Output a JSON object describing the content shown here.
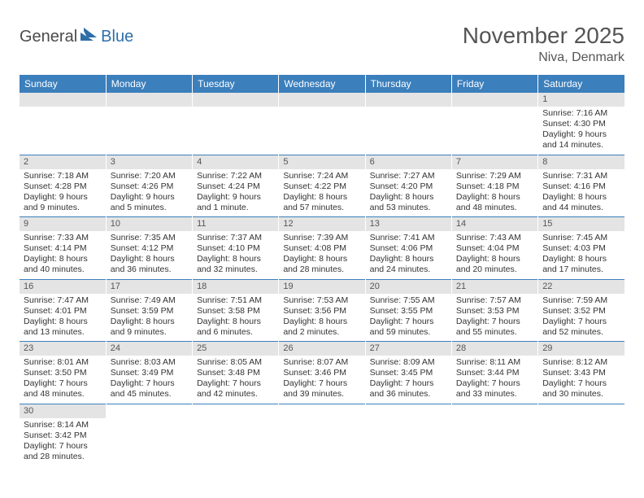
{
  "logo": {
    "general": "General",
    "blue": "Blue"
  },
  "title": "November 2025",
  "location": "Niva, Denmark",
  "weekdays": [
    "Sunday",
    "Monday",
    "Tuesday",
    "Wednesday",
    "Thursday",
    "Friday",
    "Saturday"
  ],
  "header_bg": "#3b7fbc",
  "daynum_bg": "#e4e4e4",
  "rule_color": "#3b7fbc",
  "weeks": [
    [
      null,
      null,
      null,
      null,
      null,
      null,
      {
        "n": "1",
        "sr": "Sunrise: 7:16 AM",
        "ss": "Sunset: 4:30 PM",
        "dl": "Daylight: 9 hours and 14 minutes."
      }
    ],
    [
      {
        "n": "2",
        "sr": "Sunrise: 7:18 AM",
        "ss": "Sunset: 4:28 PM",
        "dl": "Daylight: 9 hours and 9 minutes."
      },
      {
        "n": "3",
        "sr": "Sunrise: 7:20 AM",
        "ss": "Sunset: 4:26 PM",
        "dl": "Daylight: 9 hours and 5 minutes."
      },
      {
        "n": "4",
        "sr": "Sunrise: 7:22 AM",
        "ss": "Sunset: 4:24 PM",
        "dl": "Daylight: 9 hours and 1 minute."
      },
      {
        "n": "5",
        "sr": "Sunrise: 7:24 AM",
        "ss": "Sunset: 4:22 PM",
        "dl": "Daylight: 8 hours and 57 minutes."
      },
      {
        "n": "6",
        "sr": "Sunrise: 7:27 AM",
        "ss": "Sunset: 4:20 PM",
        "dl": "Daylight: 8 hours and 53 minutes."
      },
      {
        "n": "7",
        "sr": "Sunrise: 7:29 AM",
        "ss": "Sunset: 4:18 PM",
        "dl": "Daylight: 8 hours and 48 minutes."
      },
      {
        "n": "8",
        "sr": "Sunrise: 7:31 AM",
        "ss": "Sunset: 4:16 PM",
        "dl": "Daylight: 8 hours and 44 minutes."
      }
    ],
    [
      {
        "n": "9",
        "sr": "Sunrise: 7:33 AM",
        "ss": "Sunset: 4:14 PM",
        "dl": "Daylight: 8 hours and 40 minutes."
      },
      {
        "n": "10",
        "sr": "Sunrise: 7:35 AM",
        "ss": "Sunset: 4:12 PM",
        "dl": "Daylight: 8 hours and 36 minutes."
      },
      {
        "n": "11",
        "sr": "Sunrise: 7:37 AM",
        "ss": "Sunset: 4:10 PM",
        "dl": "Daylight: 8 hours and 32 minutes."
      },
      {
        "n": "12",
        "sr": "Sunrise: 7:39 AM",
        "ss": "Sunset: 4:08 PM",
        "dl": "Daylight: 8 hours and 28 minutes."
      },
      {
        "n": "13",
        "sr": "Sunrise: 7:41 AM",
        "ss": "Sunset: 4:06 PM",
        "dl": "Daylight: 8 hours and 24 minutes."
      },
      {
        "n": "14",
        "sr": "Sunrise: 7:43 AM",
        "ss": "Sunset: 4:04 PM",
        "dl": "Daylight: 8 hours and 20 minutes."
      },
      {
        "n": "15",
        "sr": "Sunrise: 7:45 AM",
        "ss": "Sunset: 4:03 PM",
        "dl": "Daylight: 8 hours and 17 minutes."
      }
    ],
    [
      {
        "n": "16",
        "sr": "Sunrise: 7:47 AM",
        "ss": "Sunset: 4:01 PM",
        "dl": "Daylight: 8 hours and 13 minutes."
      },
      {
        "n": "17",
        "sr": "Sunrise: 7:49 AM",
        "ss": "Sunset: 3:59 PM",
        "dl": "Daylight: 8 hours and 9 minutes."
      },
      {
        "n": "18",
        "sr": "Sunrise: 7:51 AM",
        "ss": "Sunset: 3:58 PM",
        "dl": "Daylight: 8 hours and 6 minutes."
      },
      {
        "n": "19",
        "sr": "Sunrise: 7:53 AM",
        "ss": "Sunset: 3:56 PM",
        "dl": "Daylight: 8 hours and 2 minutes."
      },
      {
        "n": "20",
        "sr": "Sunrise: 7:55 AM",
        "ss": "Sunset: 3:55 PM",
        "dl": "Daylight: 7 hours and 59 minutes."
      },
      {
        "n": "21",
        "sr": "Sunrise: 7:57 AM",
        "ss": "Sunset: 3:53 PM",
        "dl": "Daylight: 7 hours and 55 minutes."
      },
      {
        "n": "22",
        "sr": "Sunrise: 7:59 AM",
        "ss": "Sunset: 3:52 PM",
        "dl": "Daylight: 7 hours and 52 minutes."
      }
    ],
    [
      {
        "n": "23",
        "sr": "Sunrise: 8:01 AM",
        "ss": "Sunset: 3:50 PM",
        "dl": "Daylight: 7 hours and 48 minutes."
      },
      {
        "n": "24",
        "sr": "Sunrise: 8:03 AM",
        "ss": "Sunset: 3:49 PM",
        "dl": "Daylight: 7 hours and 45 minutes."
      },
      {
        "n": "25",
        "sr": "Sunrise: 8:05 AM",
        "ss": "Sunset: 3:48 PM",
        "dl": "Daylight: 7 hours and 42 minutes."
      },
      {
        "n": "26",
        "sr": "Sunrise: 8:07 AM",
        "ss": "Sunset: 3:46 PM",
        "dl": "Daylight: 7 hours and 39 minutes."
      },
      {
        "n": "27",
        "sr": "Sunrise: 8:09 AM",
        "ss": "Sunset: 3:45 PM",
        "dl": "Daylight: 7 hours and 36 minutes."
      },
      {
        "n": "28",
        "sr": "Sunrise: 8:11 AM",
        "ss": "Sunset: 3:44 PM",
        "dl": "Daylight: 7 hours and 33 minutes."
      },
      {
        "n": "29",
        "sr": "Sunrise: 8:12 AM",
        "ss": "Sunset: 3:43 PM",
        "dl": "Daylight: 7 hours and 30 minutes."
      }
    ],
    [
      {
        "n": "30",
        "sr": "Sunrise: 8:14 AM",
        "ss": "Sunset: 3:42 PM",
        "dl": "Daylight: 7 hours and 28 minutes."
      },
      null,
      null,
      null,
      null,
      null,
      null
    ]
  ]
}
